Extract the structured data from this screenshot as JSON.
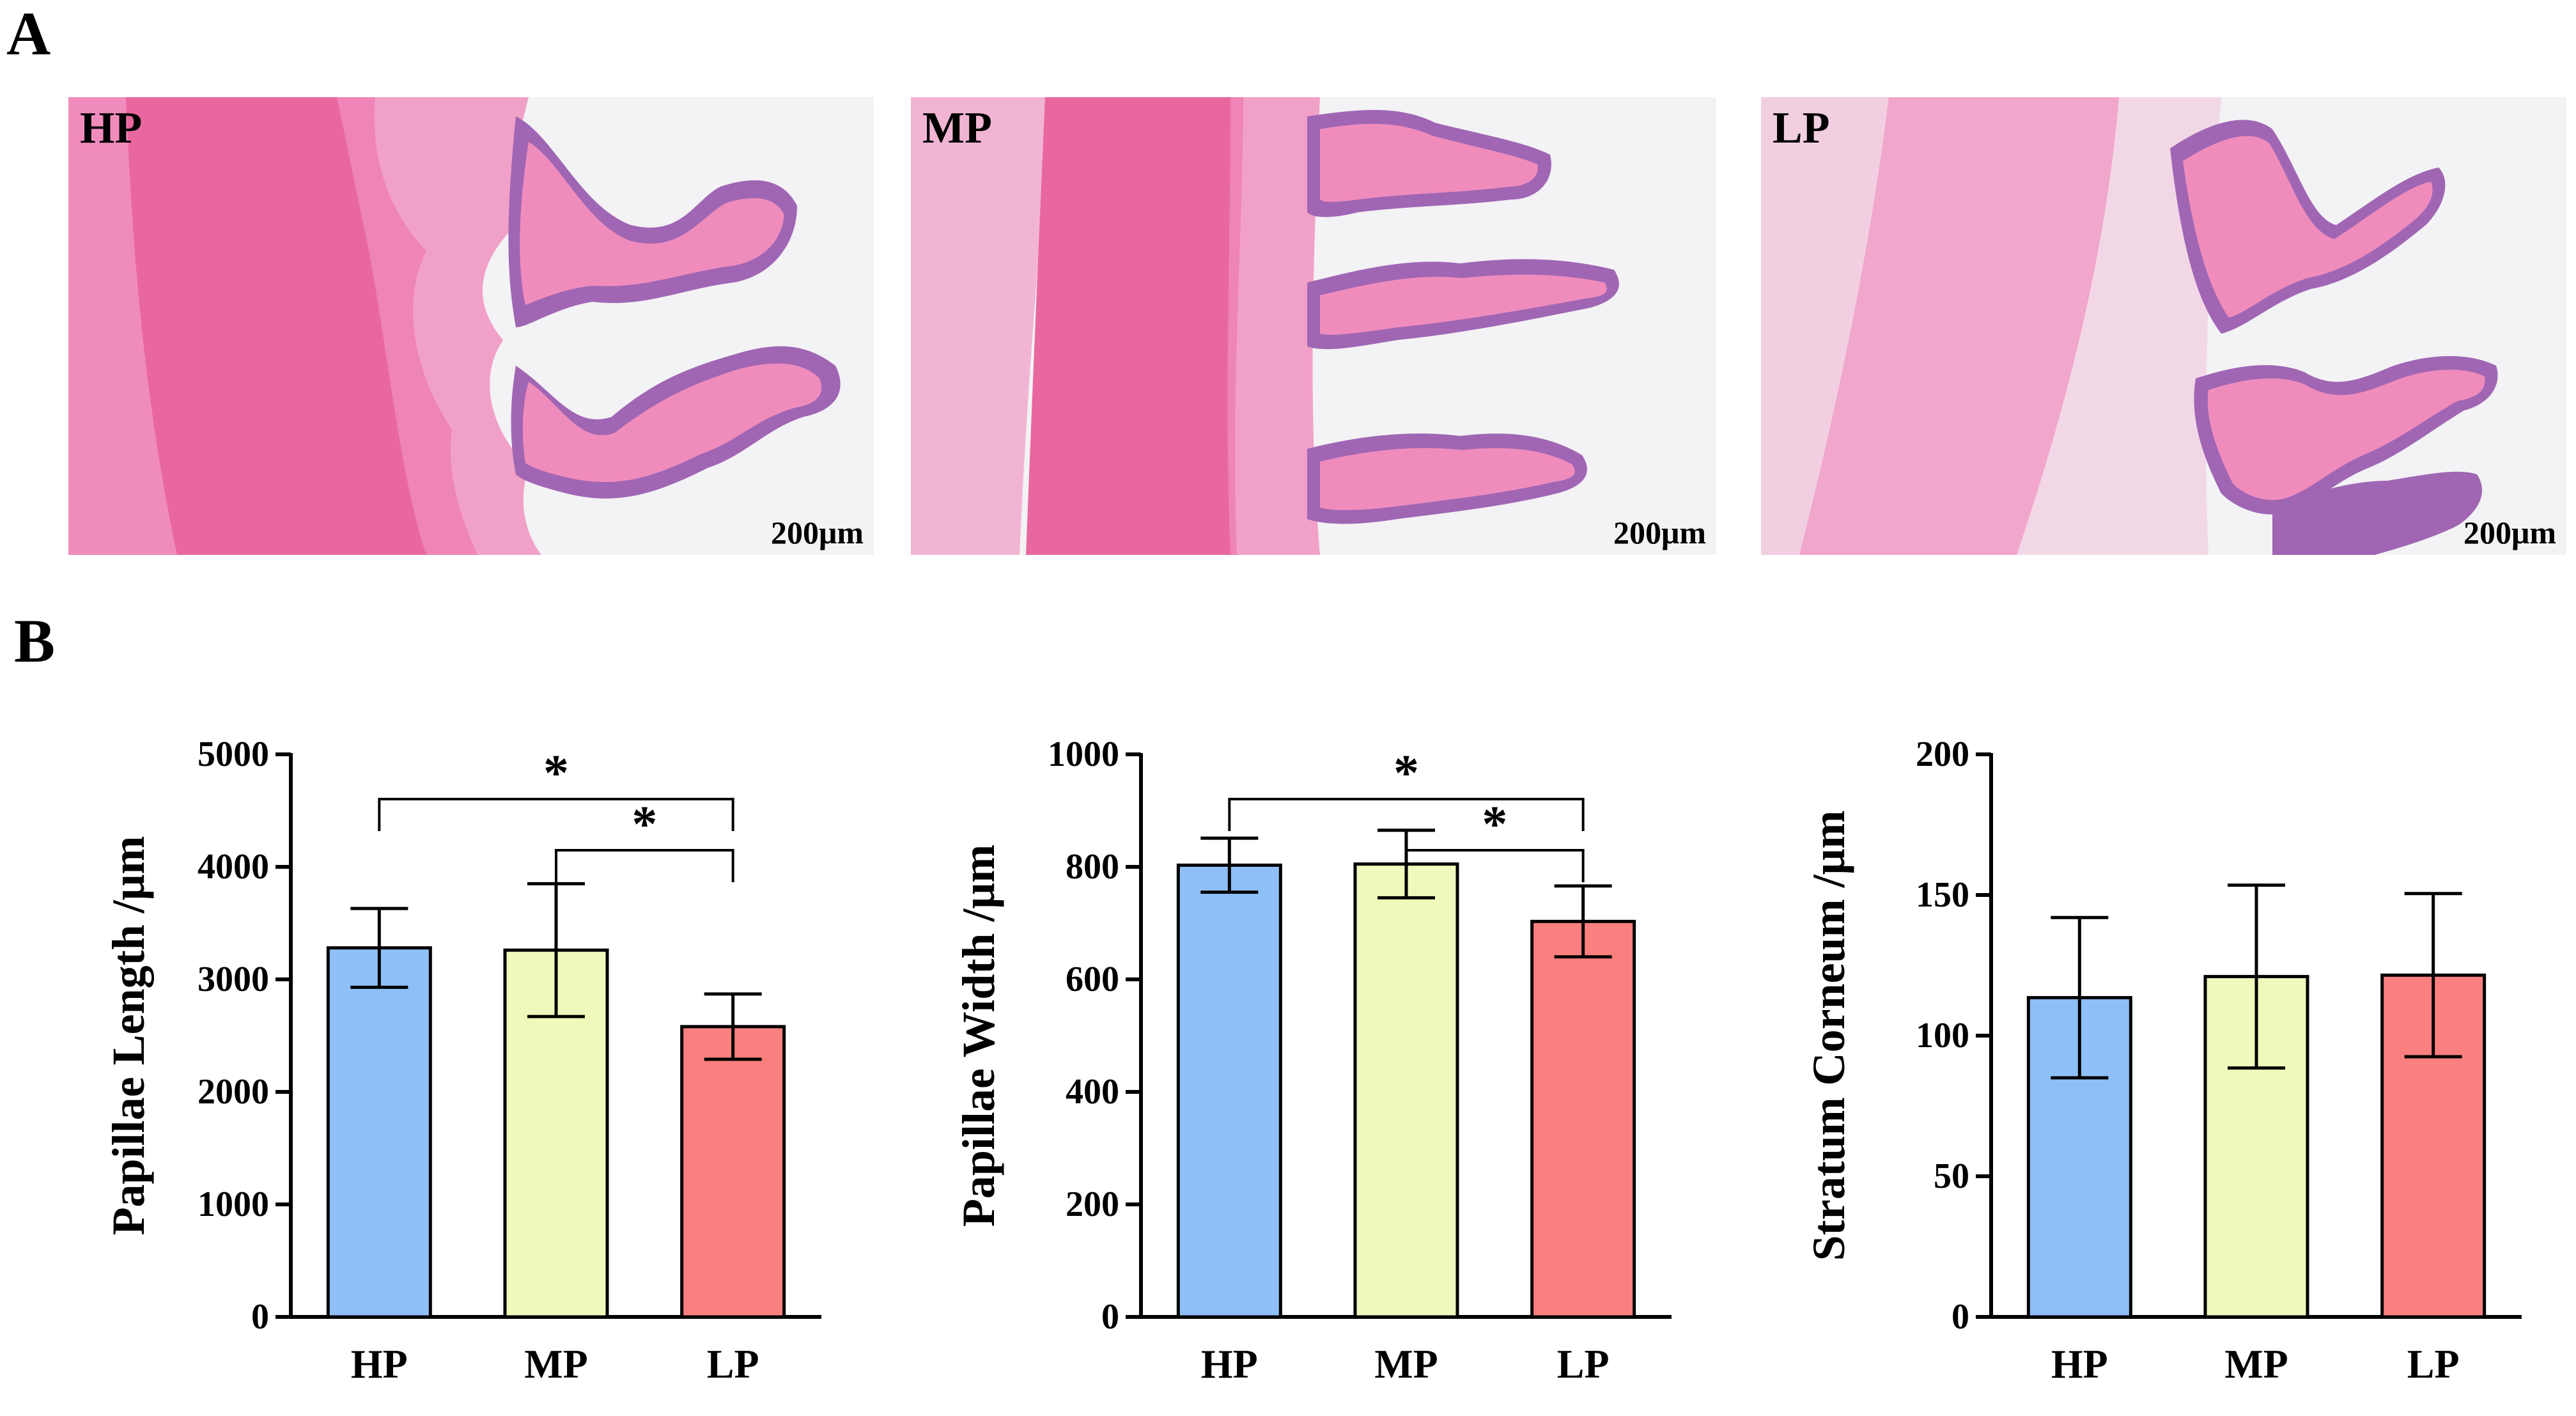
{
  "panels": {
    "a_label": "A",
    "b_label": "B"
  },
  "micrographs": [
    {
      "label": "HP",
      "scale": "200μm"
    },
    {
      "label": "MP",
      "scale": "200μm"
    },
    {
      "label": "LP",
      "scale": "200μm"
    }
  ],
  "colors": {
    "HP": "#8fbff7",
    "MP": "#f1f8bc",
    "LP": "#fa7f7f",
    "tissue_pink": "#f08cbc",
    "muscle_pink": "#e9679f",
    "epithelium": "#a066b4",
    "background": "#f3f2f5"
  },
  "chart_data": [
    {
      "type": "bar",
      "categories": [
        "HP",
        "MP",
        "LP"
      ],
      "values": [
        3280,
        3260,
        2580
      ],
      "errors": [
        350,
        590,
        290
      ],
      "ylabel": "Papillae Length /μm",
      "ylim": [
        0,
        5000
      ],
      "yticks": [
        "0",
        "1000",
        "2000",
        "3000",
        "4000",
        "5000"
      ],
      "significance": [
        {
          "from": "HP",
          "to": "LP",
          "label": "*"
        },
        {
          "from": "MP",
          "to": "LP",
          "label": "*"
        }
      ]
    },
    {
      "type": "bar",
      "categories": [
        "HP",
        "MP",
        "LP"
      ],
      "values": [
        803,
        805,
        703
      ],
      "errors": [
        48,
        60,
        63
      ],
      "ylabel": "Papillae Width /μm",
      "ylim": [
        0,
        1000
      ],
      "yticks": [
        "0",
        "200",
        "400",
        "600",
        "800",
        "1000"
      ],
      "significance": [
        {
          "from": "HP",
          "to": "LP",
          "label": "*"
        },
        {
          "from": "MP",
          "to": "LP",
          "label": "*"
        }
      ]
    },
    {
      "type": "bar",
      "categories": [
        "HP",
        "MP",
        "LP"
      ],
      "values": [
        113.5,
        121,
        121.5
      ],
      "errors": [
        28.5,
        32.5,
        29
      ],
      "ylabel": "Stratum Corneum /μm",
      "ylim": [
        0,
        200
      ],
      "yticks": [
        "0",
        "50",
        "100",
        "150",
        "200"
      ],
      "significance": []
    }
  ]
}
